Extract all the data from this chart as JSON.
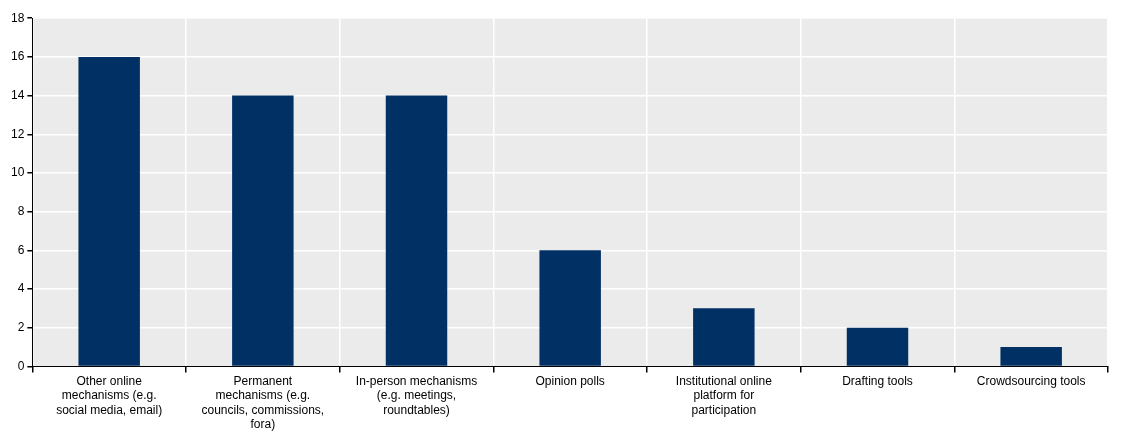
{
  "chart_data": {
    "type": "bar",
    "categories": [
      "Other online mechanisms (e.g. social media, email)",
      "Permanent mechanisms (e.g. councils, commissions, fora)",
      "In-person mechanisms (e.g. meetings, roundtables)",
      "Opinion polls",
      "Institutional online platform for participation",
      "Drafting tools",
      "Crowdsourcing tools"
    ],
    "values": [
      16,
      14,
      14,
      6,
      3,
      2,
      1
    ],
    "color": "#003064",
    "ylim": [
      0,
      18
    ],
    "yticks": [
      0,
      2,
      4,
      6,
      8,
      10,
      12,
      14,
      16,
      18
    ],
    "grid": true
  }
}
